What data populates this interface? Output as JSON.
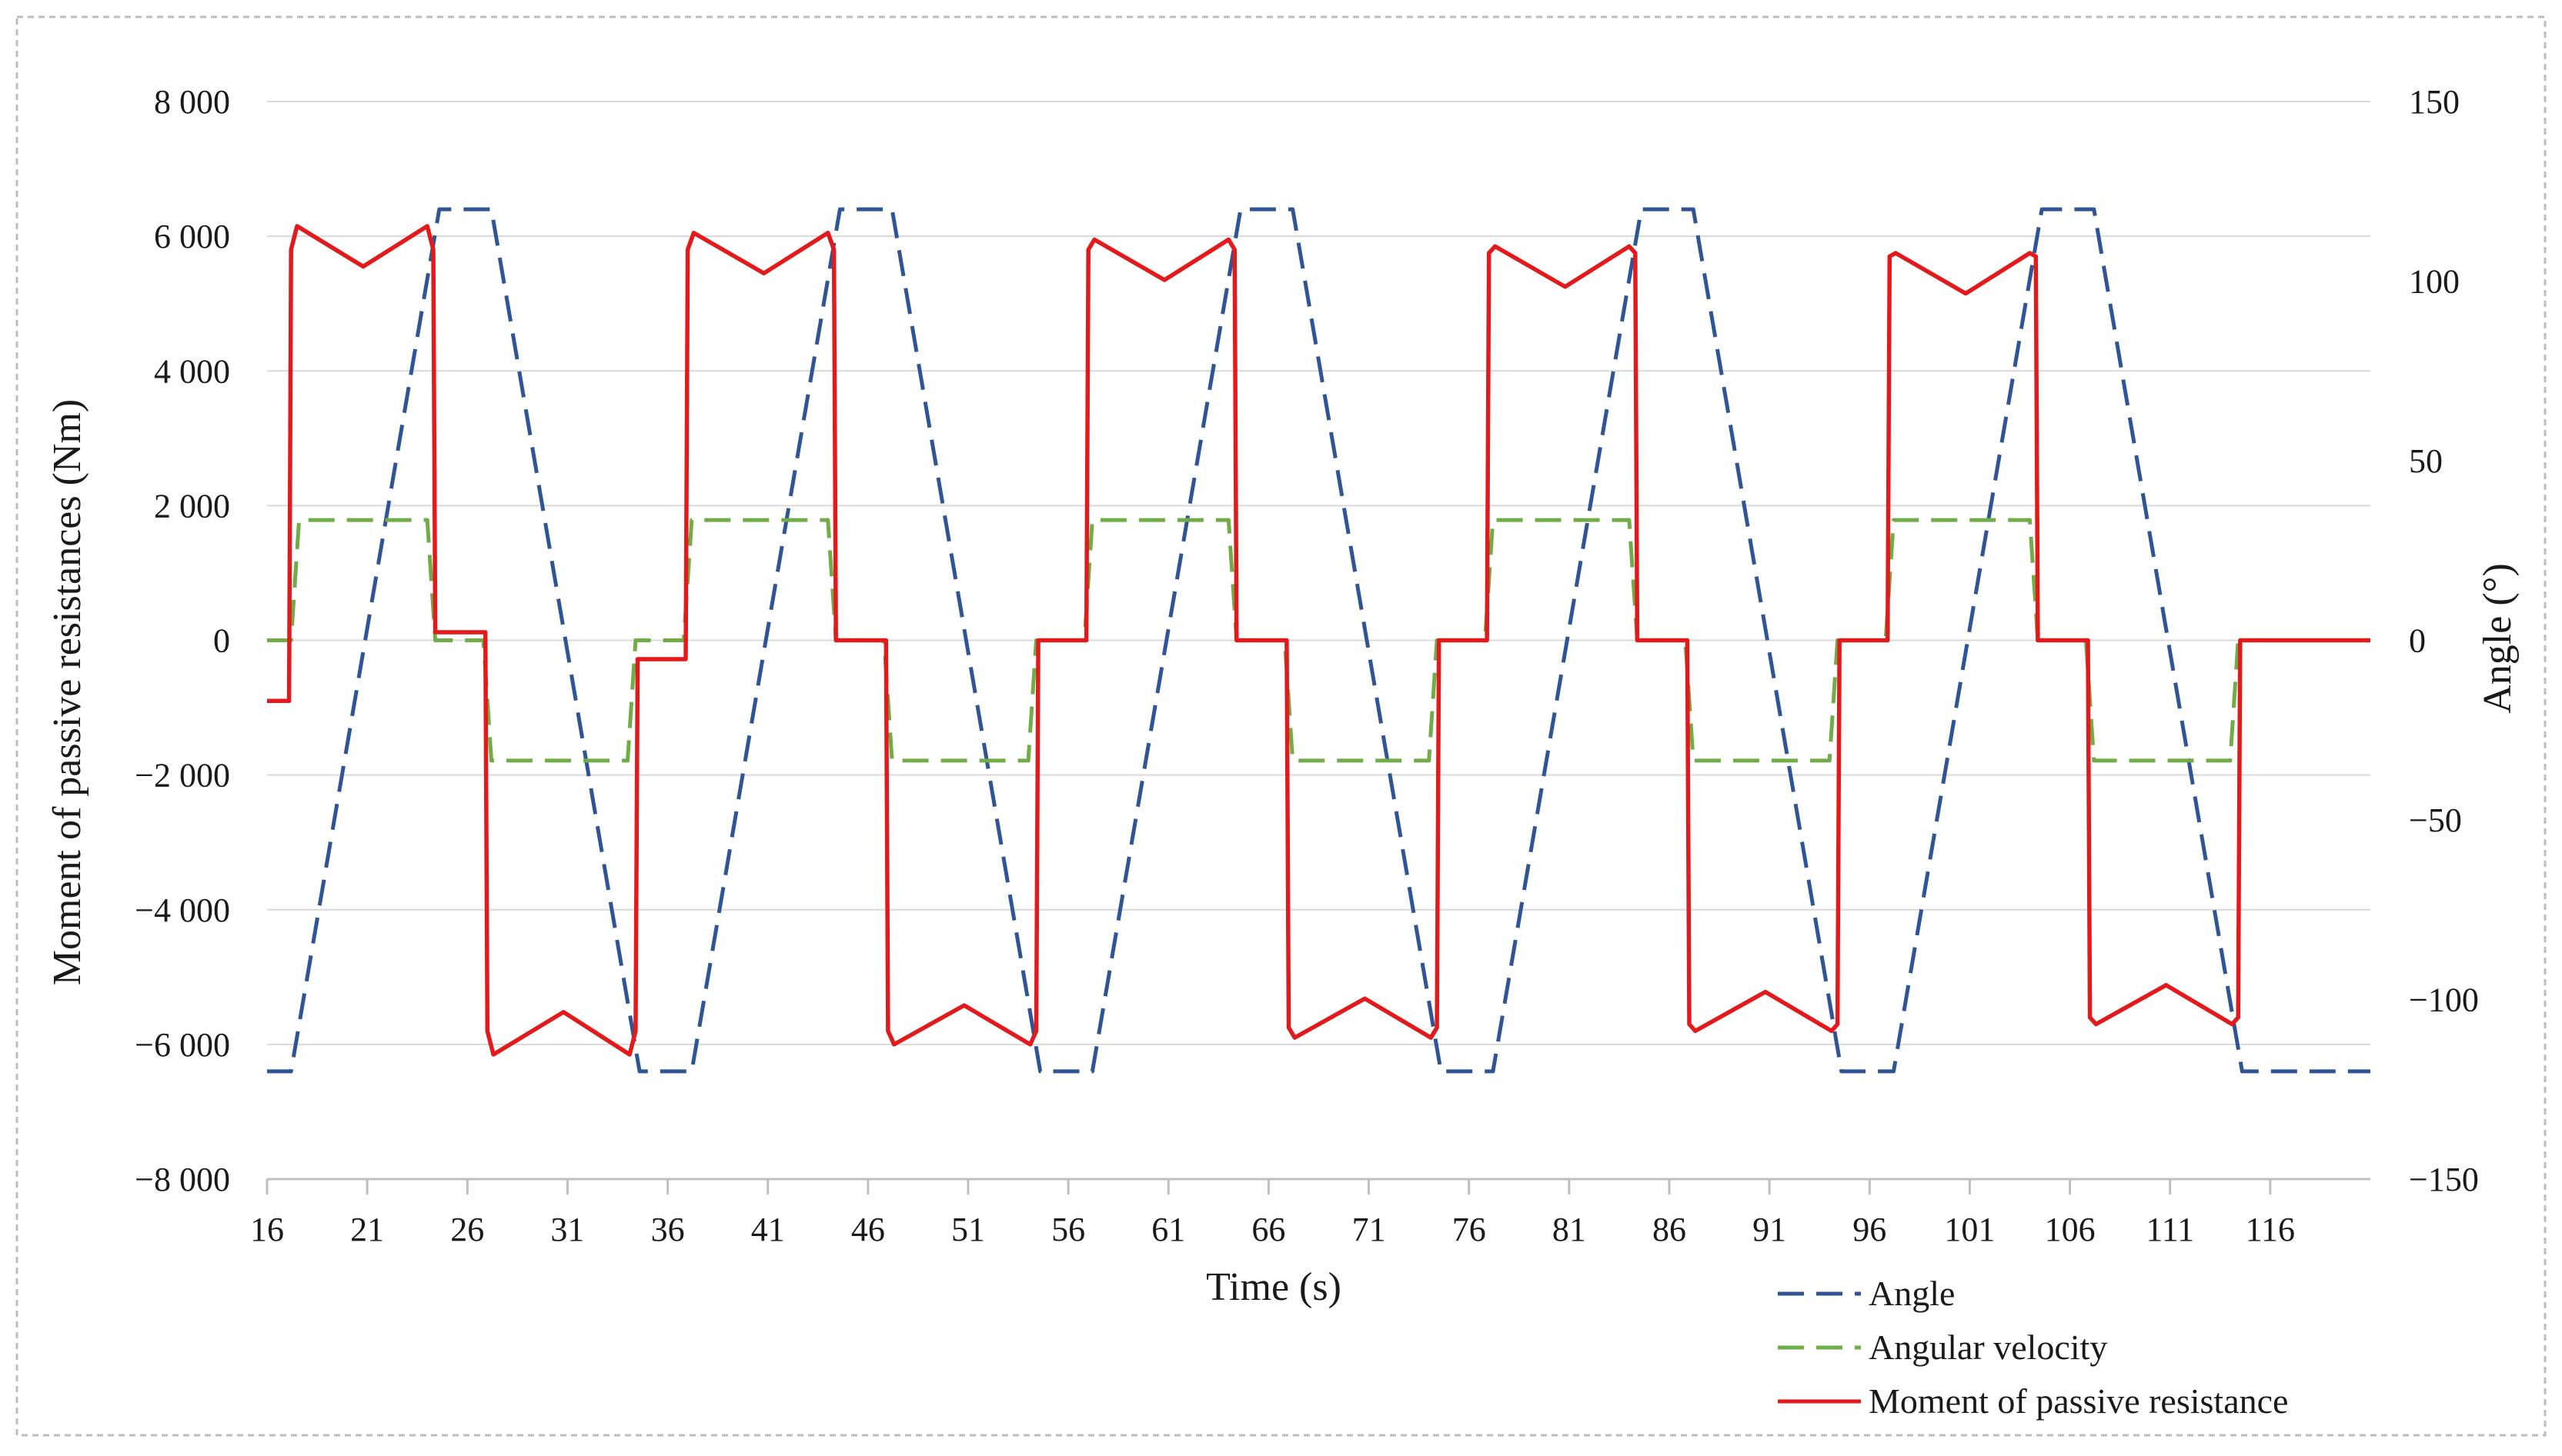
{
  "chart_data": {
    "type": "line",
    "title": "",
    "xlabel": "Time  (s)",
    "ylabel_left": "Moment of passive resistances  (Nm)",
    "ylabel_right": "Angle  (°)",
    "xlim": [
      16,
      121
    ],
    "ylim_left": [
      -8000,
      8000
    ],
    "ylim_right": [
      -150,
      150
    ],
    "grid": "horizontal",
    "legend_position": "bottom-right",
    "x_ticks": [
      "16",
      "21",
      "26",
      "31",
      "36",
      "41",
      "46",
      "51",
      "56",
      "61",
      "66",
      "71",
      "76",
      "81",
      "86",
      "91",
      "96",
      "101",
      "106",
      "111",
      "116"
    ],
    "y_ticks_left": [
      "8 000",
      "6 000",
      "4 000",
      "2 000",
      "0",
      "−2 000",
      "−4 000",
      "−6 000",
      "−8 000"
    ],
    "y_ticks_right": [
      "150",
      "100",
      "50",
      "0",
      "−50",
      "−100",
      "−150"
    ],
    "series": [
      {
        "name": "Angle",
        "axis": "right",
        "style": "dashed",
        "color": "#2f5597",
        "x": [
          16,
          17.2,
          24.6,
          27.2,
          34.6,
          37.2,
          44.6,
          47.2,
          54.6,
          57.2,
          64.6,
          67.2,
          74.6,
          77.2,
          84.6,
          87.2,
          94.6,
          97.2,
          104.6,
          107.2,
          114.6,
          121
        ],
        "y": [
          -120,
          -120,
          120,
          120,
          -120,
          -120,
          120,
          120,
          -120,
          -120,
          120,
          120,
          -120,
          -120,
          120,
          120,
          -120,
          -120,
          120,
          120,
          -120,
          -120
        ]
      },
      {
        "name": "Angular velocity",
        "axis": "right",
        "style": "dashed",
        "color": "#70ad47",
        "x": [
          16,
          17.2,
          17.6,
          24.0,
          24.4,
          26.8,
          27.2,
          34.0,
          34.4,
          36.8,
          37.2,
          44.0,
          44.4,
          46.8,
          47.2,
          54.0,
          54.4,
          56.8,
          57.2,
          64.0,
          64.4,
          66.8,
          67.2,
          74.0,
          74.4,
          76.8,
          77.2,
          84.0,
          84.4,
          86.8,
          87.2,
          94.0,
          94.4,
          96.8,
          97.2,
          104.0,
          104.4,
          106.8,
          107.2,
          114.0,
          114.4,
          121
        ],
        "y": [
          0,
          0,
          33.5,
          33.5,
          0,
          0,
          -33.5,
          -33.5,
          0,
          0,
          33.5,
          33.5,
          0,
          0,
          -33.5,
          -33.5,
          0,
          0,
          33.5,
          33.5,
          0,
          0,
          -33.5,
          -33.5,
          0,
          0,
          33.5,
          33.5,
          0,
          0,
          -33.5,
          -33.5,
          0,
          0,
          33.5,
          33.5,
          0,
          0,
          -33.5,
          -33.5,
          0,
          0
        ]
      },
      {
        "name": "Moment of passive resistance",
        "axis": "left",
        "style": "solid",
        "color": "#e31a1c",
        "x": [
          16,
          17.1,
          17.2,
          17.5,
          20.8,
          24.0,
          24.3,
          24.4,
          26.9,
          27.0,
          27.3,
          30.8,
          34.1,
          34.4,
          34.5,
          36.9,
          37.0,
          37.3,
          40.8,
          44.0,
          44.3,
          44.4,
          46.9,
          47.0,
          47.3,
          50.8,
          54.1,
          54.4,
          54.5,
          56.9,
          57.0,
          57.3,
          60.8,
          64.0,
          64.3,
          64.4,
          66.9,
          67.0,
          67.3,
          70.8,
          74.1,
          74.4,
          74.5,
          76.9,
          77.0,
          77.3,
          80.8,
          84.0,
          84.3,
          84.4,
          86.9,
          87.0,
          87.3,
          90.8,
          94.1,
          94.4,
          94.5,
          96.9,
          97.0,
          97.3,
          100.8,
          104.0,
          104.3,
          104.4,
          106.9,
          107.0,
          107.3,
          110.8,
          114.1,
          114.4,
          114.5,
          121
        ],
        "y": [
          -900,
          -900,
          5800,
          6150,
          5550,
          6150,
          5800,
          120,
          120,
          -5800,
          -6150,
          -5520,
          -6150,
          -5800,
          -280,
          -280,
          5800,
          6050,
          5450,
          6050,
          5800,
          0,
          0,
          -5800,
          -6000,
          -5420,
          -6000,
          -5800,
          0,
          0,
          5800,
          5950,
          5350,
          5950,
          5800,
          0,
          0,
          -5750,
          -5900,
          -5320,
          -5900,
          -5750,
          0,
          0,
          5750,
          5850,
          5250,
          5850,
          5750,
          0,
          0,
          -5700,
          -5800,
          -5220,
          -5800,
          -5700,
          0,
          0,
          5700,
          5750,
          5150,
          5750,
          5700,
          0,
          0,
          -5600,
          -5700,
          -5120,
          -5700,
          -5600,
          0,
          0
        ]
      }
    ]
  },
  "legend": {
    "angle": "Angle",
    "angular_velocity": "Angular velocity",
    "moment": "Moment of passive resistance"
  }
}
